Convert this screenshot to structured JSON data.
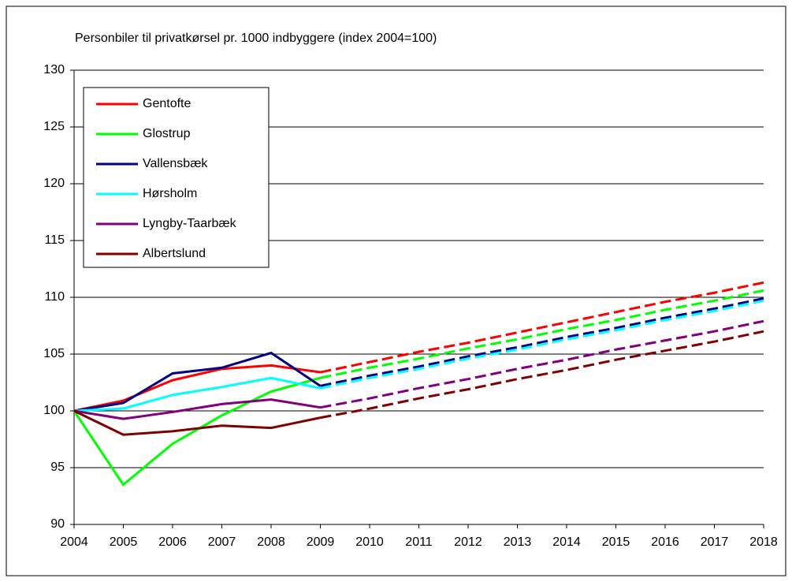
{
  "chart_data": {
    "type": "line",
    "title": "Personbiler til privatkørsel pr. 1000 indbyggere (index 2004=100)",
    "categories": [
      "2004",
      "2005",
      "2006",
      "2007",
      "2008",
      "2009",
      "2010",
      "2011",
      "2012",
      "2013",
      "2014",
      "2015",
      "2016",
      "2017",
      "2018"
    ],
    "dashed_from": "2009",
    "series": [
      {
        "name": "Gentofte",
        "color": "#ff0000",
        "values": [
          100,
          100.9,
          102.7,
          103.7,
          104.0,
          103.4,
          104.3,
          105.2,
          106.0,
          106.9,
          107.8,
          108.7,
          109.6,
          110.4,
          111.3
        ]
      },
      {
        "name": "Glostrup",
        "color": "#00ff00",
        "values": [
          100,
          93.5,
          97.1,
          99.6,
          101.7,
          102.9,
          103.8,
          104.6,
          105.5,
          106.3,
          107.2,
          108.0,
          108.9,
          109.7,
          110.6
        ]
      },
      {
        "name": "Vallensbæk",
        "color": "#000080",
        "values": [
          100,
          100.7,
          103.3,
          103.8,
          105.1,
          102.2,
          103.1,
          103.9,
          104.8,
          105.6,
          106.5,
          107.3,
          108.2,
          109.0,
          109.9
        ]
      },
      {
        "name": "Hørsholm",
        "color": "#00ffff",
        "values": [
          100,
          100.2,
          101.4,
          102.1,
          102.9,
          102.0,
          102.9,
          103.7,
          104.6,
          105.4,
          106.3,
          107.1,
          108.0,
          108.8,
          109.7
        ]
      },
      {
        "name": "Lyngby-Taarbæk",
        "color": "#800080",
        "values": [
          100,
          99.3,
          99.9,
          100.6,
          101.0,
          100.3,
          101.1,
          102.0,
          102.8,
          103.7,
          104.5,
          105.4,
          106.2,
          107.0,
          107.9
        ]
      },
      {
        "name": "Albertslund",
        "color": "#800000",
        "values": [
          100,
          97.9,
          98.2,
          98.7,
          98.5,
          99.4,
          100.2,
          101.1,
          101.9,
          102.8,
          103.6,
          104.5,
          105.3,
          106.1,
          107.0
        ]
      }
    ],
    "ylim": [
      90,
      130
    ],
    "yticks": [
      90,
      95,
      100,
      105,
      110,
      115,
      120,
      125,
      130
    ],
    "grid": true,
    "legend": "upper left"
  }
}
